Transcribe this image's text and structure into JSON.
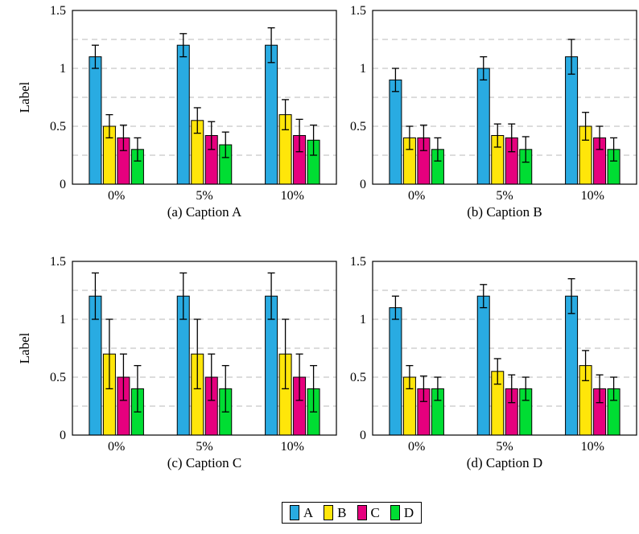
{
  "colors": {
    "background": "#ffffff",
    "axis": "#000000",
    "grid": "#b8b8b8",
    "series_a": "#29abe2",
    "series_b": "#ffe60a",
    "series_c": "#e6007e",
    "series_d": "#00dd33"
  },
  "legend": {
    "entries": [
      {
        "label": "A",
        "color": "#29abe2"
      },
      {
        "label": "B",
        "color": "#ffe60a"
      },
      {
        "label": "C",
        "color": "#e6007e"
      },
      {
        "label": "D",
        "color": "#00dd33"
      }
    ]
  },
  "chart_data": [
    {
      "id": "a",
      "type": "bar",
      "caption": "(a) Caption A",
      "ylabel": "Label",
      "xlabel": "",
      "categories": [
        "0%",
        "5%",
        "10%"
      ],
      "ylim": [
        0,
        1.5
      ],
      "yticks": [
        0,
        0.5,
        1,
        1.5
      ],
      "ytick_labels": [
        "0",
        "0.5",
        "1",
        "1.5"
      ],
      "gridlines": [
        0.25,
        0.5,
        0.75,
        1,
        1.25
      ],
      "grid_style": "dashed",
      "legend_position": "shared-bottom",
      "series": [
        {
          "name": "A",
          "color": "#29abe2",
          "values": [
            1.1,
            1.2,
            1.2
          ],
          "errors": [
            0.1,
            0.1,
            0.15
          ]
        },
        {
          "name": "B",
          "color": "#ffe60a",
          "values": [
            0.5,
            0.55,
            0.6
          ],
          "errors": [
            0.1,
            0.11,
            0.13
          ]
        },
        {
          "name": "C",
          "color": "#e6007e",
          "values": [
            0.4,
            0.42,
            0.42
          ],
          "errors": [
            0.11,
            0.12,
            0.14
          ]
        },
        {
          "name": "D",
          "color": "#00dd33",
          "values": [
            0.3,
            0.34,
            0.38
          ],
          "errors": [
            0.1,
            0.11,
            0.13
          ]
        }
      ]
    },
    {
      "id": "b",
      "type": "bar",
      "caption": "(b) Caption B",
      "ylabel": "",
      "xlabel": "",
      "categories": [
        "0%",
        "5%",
        "10%"
      ],
      "ylim": [
        0,
        1.5
      ],
      "yticks": [
        0,
        0.5,
        1,
        1.5
      ],
      "ytick_labels": [
        "0",
        "0.5",
        "1",
        "1.5"
      ],
      "gridlines": [
        0.25,
        0.5,
        0.75,
        1,
        1.25
      ],
      "grid_style": "dashed",
      "legend_position": "shared-bottom",
      "series": [
        {
          "name": "A",
          "color": "#29abe2",
          "values": [
            0.9,
            1.0,
            1.1
          ],
          "errors": [
            0.1,
            0.1,
            0.15
          ]
        },
        {
          "name": "B",
          "color": "#ffe60a",
          "values": [
            0.4,
            0.42,
            0.5
          ],
          "errors": [
            0.1,
            0.1,
            0.12
          ]
        },
        {
          "name": "C",
          "color": "#e6007e",
          "values": [
            0.4,
            0.4,
            0.4
          ],
          "errors": [
            0.11,
            0.12,
            0.1
          ]
        },
        {
          "name": "D",
          "color": "#00dd33",
          "values": [
            0.3,
            0.3,
            0.3
          ],
          "errors": [
            0.1,
            0.11,
            0.1
          ]
        }
      ]
    },
    {
      "id": "c",
      "type": "bar",
      "caption": "(c) Caption C",
      "ylabel": "Label",
      "xlabel": "",
      "categories": [
        "0%",
        "5%",
        "10%"
      ],
      "ylim": [
        0,
        1.5
      ],
      "yticks": [
        0,
        0.5,
        1,
        1.5
      ],
      "ytick_labels": [
        "0",
        "0.5",
        "1",
        "1.5"
      ],
      "gridlines": [
        0.25,
        0.5,
        0.75,
        1,
        1.25
      ],
      "grid_style": "dashed",
      "legend_position": "shared-bottom",
      "series": [
        {
          "name": "A",
          "color": "#29abe2",
          "values": [
            1.2,
            1.2,
            1.2
          ],
          "errors": [
            0.2,
            0.2,
            0.2
          ]
        },
        {
          "name": "B",
          "color": "#ffe60a",
          "values": [
            0.7,
            0.7,
            0.7
          ],
          "errors": [
            0.3,
            0.3,
            0.3
          ]
        },
        {
          "name": "C",
          "color": "#e6007e",
          "values": [
            0.5,
            0.5,
            0.5
          ],
          "errors": [
            0.2,
            0.2,
            0.2
          ]
        },
        {
          "name": "D",
          "color": "#00dd33",
          "values": [
            0.4,
            0.4,
            0.4
          ],
          "errors": [
            0.2,
            0.2,
            0.2
          ]
        }
      ]
    },
    {
      "id": "d",
      "type": "bar",
      "caption": "(d) Caption D",
      "ylabel": "",
      "xlabel": "",
      "categories": [
        "0%",
        "5%",
        "10%"
      ],
      "ylim": [
        0,
        1.5
      ],
      "yticks": [
        0,
        0.5,
        1,
        1.5
      ],
      "ytick_labels": [
        "0",
        "0.5",
        "1",
        "1.5"
      ],
      "gridlines": [
        0.25,
        0.5,
        0.75,
        1,
        1.25
      ],
      "grid_style": "dashed",
      "legend_position": "shared-bottom",
      "series": [
        {
          "name": "A",
          "color": "#29abe2",
          "values": [
            1.1,
            1.2,
            1.2
          ],
          "errors": [
            0.1,
            0.1,
            0.15
          ]
        },
        {
          "name": "B",
          "color": "#ffe60a",
          "values": [
            0.5,
            0.55,
            0.6
          ],
          "errors": [
            0.1,
            0.11,
            0.13
          ]
        },
        {
          "name": "C",
          "color": "#e6007e",
          "values": [
            0.4,
            0.4,
            0.4
          ],
          "errors": [
            0.11,
            0.12,
            0.12
          ]
        },
        {
          "name": "D",
          "color": "#00dd33",
          "values": [
            0.4,
            0.4,
            0.4
          ],
          "errors": [
            0.1,
            0.1,
            0.1
          ]
        }
      ]
    }
  ]
}
